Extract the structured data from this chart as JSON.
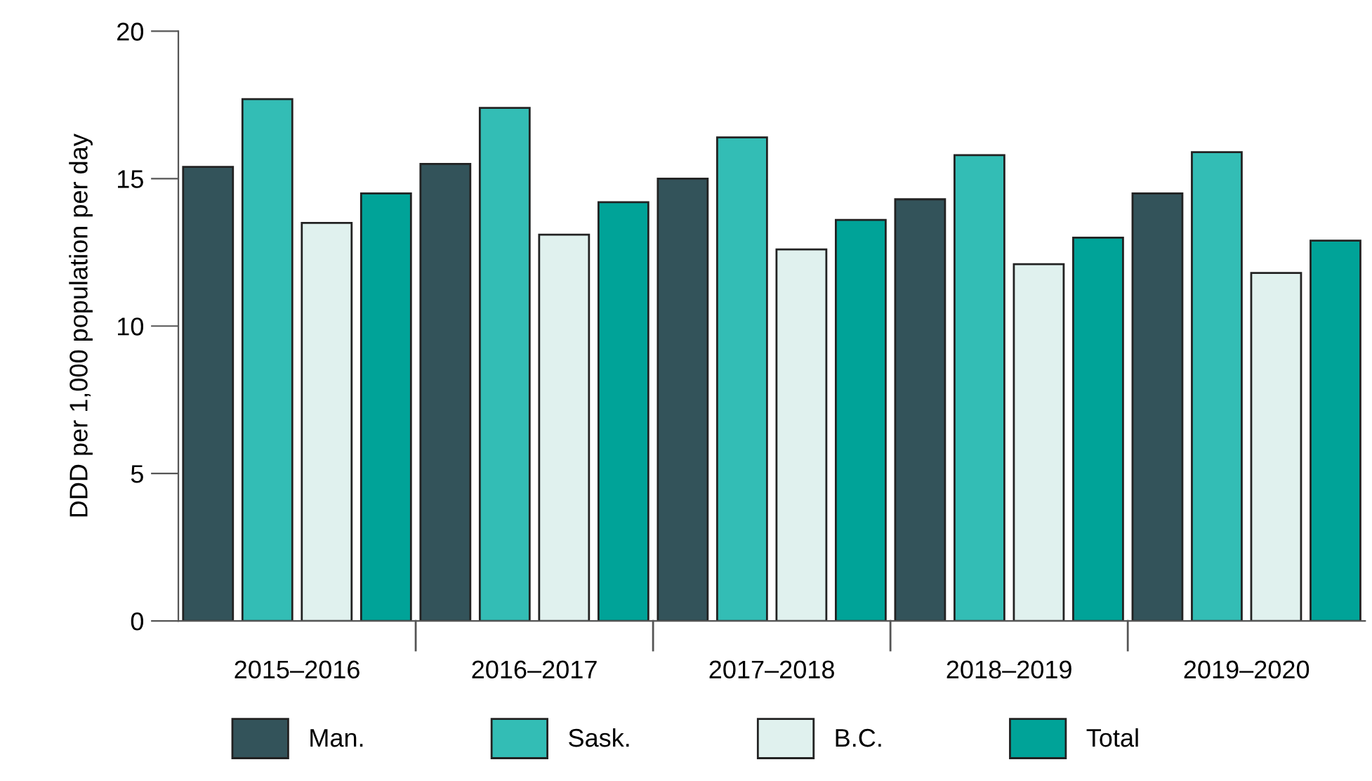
{
  "chart_data": {
    "type": "bar",
    "ylabel": "DDD per 1,000 population per day",
    "categories": [
      "2015–2016",
      "2016–2017",
      "2017–2018",
      "2018–2019",
      "2019–2020"
    ],
    "series": [
      {
        "name": "Man.",
        "color": "#33535a",
        "values": [
          15.4,
          15.5,
          15.0,
          14.3,
          14.5
        ]
      },
      {
        "name": "Sask.",
        "color": "#33bdb5",
        "values": [
          17.7,
          17.4,
          16.4,
          15.8,
          15.9
        ]
      },
      {
        "name": "B.C.",
        "color": "#e0f1ee",
        "values": [
          13.5,
          13.1,
          12.6,
          12.1,
          11.8
        ]
      },
      {
        "name": "Total",
        "color": "#00a398",
        "values": [
          14.5,
          14.2,
          13.6,
          13.0,
          12.9
        ]
      }
    ],
    "ylim": [
      0,
      20
    ],
    "yticks": [
      0,
      5,
      10,
      15,
      20
    ],
    "grid": false,
    "legend": "bottom"
  }
}
